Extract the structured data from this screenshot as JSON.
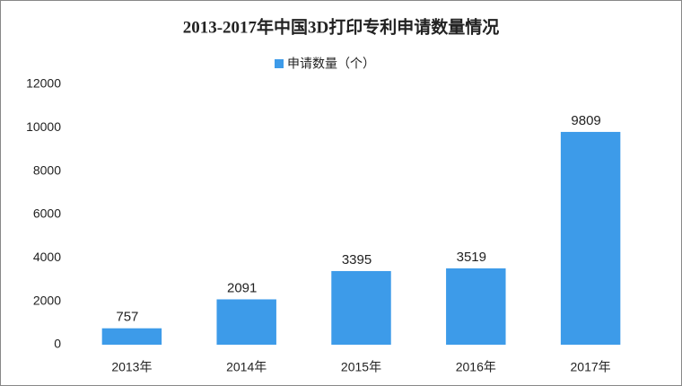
{
  "chart_data": {
    "type": "bar",
    "title": "2013-2017年中国3D打印专利申请数量情况",
    "categories": [
      "2013年",
      "2014年",
      "2015年",
      "2016年",
      "2017年"
    ],
    "series": [
      {
        "name": "申请数量（个）",
        "color": "#3d9be9",
        "values": [
          757,
          2091,
          3395,
          3519,
          9809
        ]
      }
    ],
    "ylim": [
      0,
      12000
    ],
    "yticks": [
      0,
      2000,
      4000,
      6000,
      8000,
      10000,
      12000
    ],
    "grid": false,
    "legend": "top"
  }
}
